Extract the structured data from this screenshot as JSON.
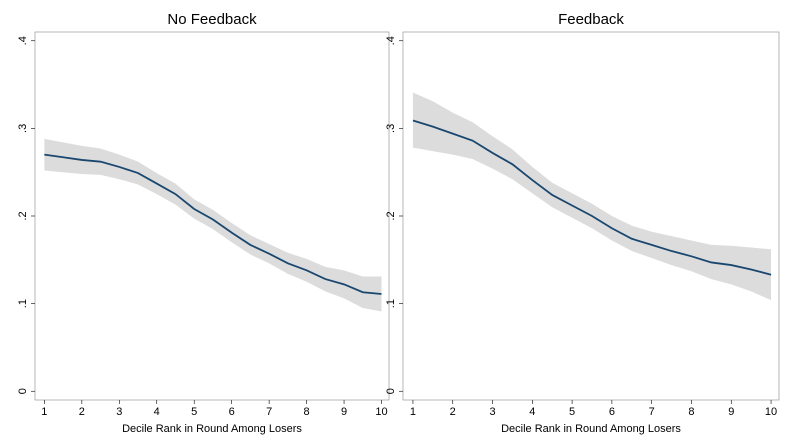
{
  "chart_data": [
    {
      "type": "line",
      "title": "No Feedback",
      "x_label": "Decile Rank in Round Among Losers",
      "x": [
        1,
        1.5,
        2,
        2.5,
        3,
        3.5,
        4,
        4.5,
        5,
        5.5,
        6,
        6.5,
        7,
        7.5,
        8,
        8.5,
        9,
        9.5,
        10
      ],
      "series": [
        {
          "color": "#1a476f",
          "values": [
            0.27,
            0.267,
            0.264,
            0.262,
            0.256,
            0.249,
            0.237,
            0.225,
            0.208,
            0.196,
            0.181,
            0.167,
            0.157,
            0.146,
            0.138,
            0.128,
            0.122,
            0.113,
            0.111
          ],
          "lower": [
            0.252,
            0.25,
            0.248,
            0.247,
            0.242,
            0.236,
            0.225,
            0.213,
            0.197,
            0.185,
            0.17,
            0.156,
            0.146,
            0.134,
            0.125,
            0.114,
            0.106,
            0.095,
            0.091
          ],
          "upper": [
            0.288,
            0.284,
            0.28,
            0.277,
            0.27,
            0.262,
            0.249,
            0.237,
            0.219,
            0.207,
            0.192,
            0.178,
            0.168,
            0.158,
            0.151,
            0.142,
            0.138,
            0.131,
            0.131
          ],
          "band_color": "#dcdcdc"
        }
      ],
      "xlim": [
        0.75,
        10.2
      ],
      "ylim": [
        -0.01,
        0.41
      ],
      "xticks": [
        1,
        2,
        3,
        4,
        5,
        6,
        7,
        8,
        9,
        10
      ],
      "yticks": [
        0,
        {
          "value": 0.1,
          "label": ".1"
        },
        {
          "value": 0.2,
          "label": ".2"
        },
        {
          "value": 0.3,
          "label": ".3"
        },
        {
          "value": 0.4,
          "label": ".4"
        }
      ]
    },
    {
      "type": "line",
      "title": "Feedback",
      "x_label": "Decile Rank in Round Among Losers",
      "x": [
        1,
        1.5,
        2,
        2.5,
        3,
        3.5,
        4,
        4.5,
        5,
        5.5,
        6,
        6.5,
        7,
        7.5,
        8,
        8.5,
        9,
        9.5,
        10
      ],
      "series": [
        {
          "color": "#1a476f",
          "values": [
            0.309,
            0.302,
            0.294,
            0.286,
            0.272,
            0.259,
            0.241,
            0.224,
            0.212,
            0.2,
            0.186,
            0.174,
            0.167,
            0.16,
            0.154,
            0.147,
            0.144,
            0.139,
            0.133
          ],
          "lower": [
            0.278,
            0.274,
            0.27,
            0.265,
            0.254,
            0.242,
            0.226,
            0.21,
            0.198,
            0.186,
            0.172,
            0.16,
            0.152,
            0.144,
            0.137,
            0.128,
            0.122,
            0.114,
            0.104
          ],
          "upper": [
            0.341,
            0.331,
            0.318,
            0.307,
            0.291,
            0.276,
            0.256,
            0.238,
            0.226,
            0.214,
            0.2,
            0.189,
            0.182,
            0.177,
            0.172,
            0.167,
            0.166,
            0.164,
            0.162
          ],
          "band_color": "#dcdcdc"
        }
      ],
      "xlim": [
        0.75,
        10.2
      ],
      "ylim": [
        -0.01,
        0.41
      ],
      "xticks": [
        1,
        2,
        3,
        4,
        5,
        6,
        7,
        8,
        9,
        10
      ],
      "yticks": [
        0,
        {
          "value": 0.1,
          "label": ".1"
        },
        {
          "value": 0.2,
          "label": ".2"
        },
        {
          "value": 0.3,
          "label": ".3"
        },
        {
          "value": 0.4,
          "label": ".4"
        }
      ]
    }
  ]
}
